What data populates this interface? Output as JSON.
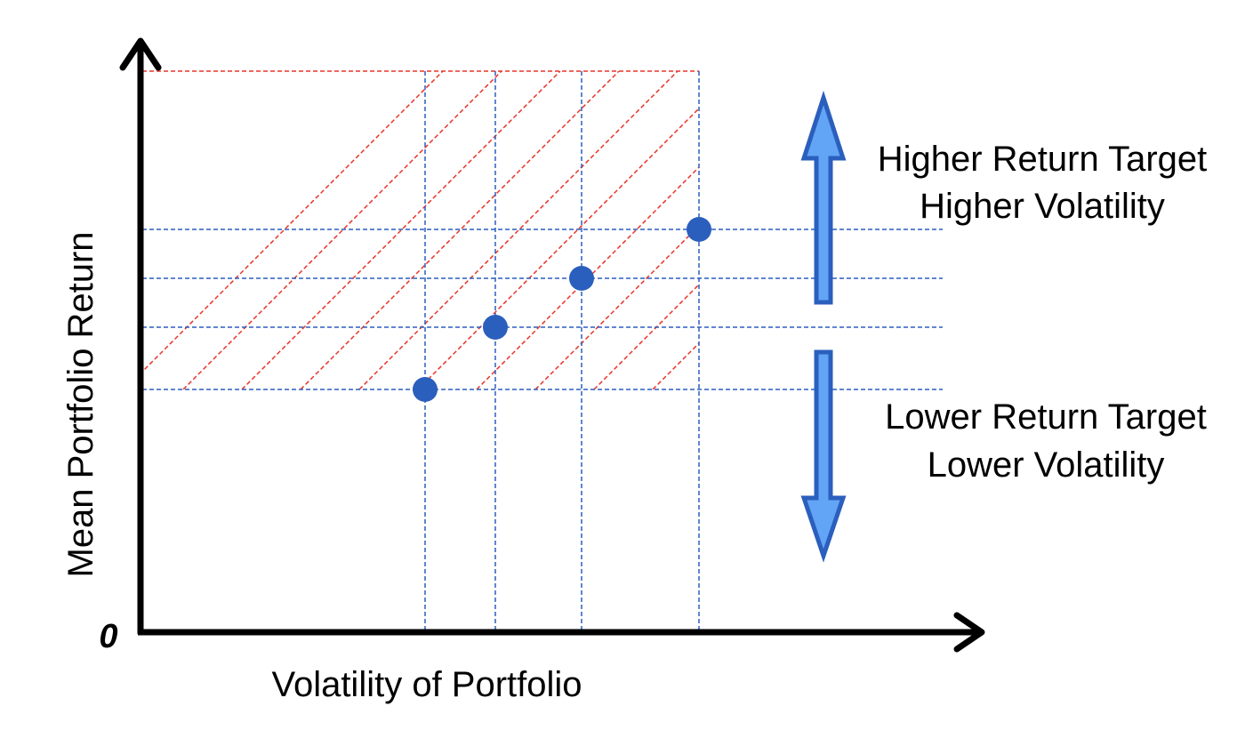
{
  "axes": {
    "x_label": "Volatility of Portfolio",
    "y_label": "Mean Portfolio Return",
    "origin_label": "0"
  },
  "annotations": {
    "up": {
      "line1": "Higher Return Target",
      "line2": "Higher Volatility"
    },
    "down": {
      "line1": "Lower Return Target",
      "line2": "Lower Volatility"
    }
  },
  "points": [
    {
      "volatility": 1,
      "return": 1
    },
    {
      "volatility": 2,
      "return": 2
    },
    {
      "volatility": 3,
      "return": 3
    },
    {
      "volatility": 4,
      "return": 4
    }
  ],
  "colors": {
    "axis": "#000000",
    "point": "#2b5fbd",
    "guide": "#2b5fbd",
    "hatch": "#e8352a",
    "arrow_fill": "#62a4f5",
    "arrow_stroke": "#2b5fbd"
  }
}
